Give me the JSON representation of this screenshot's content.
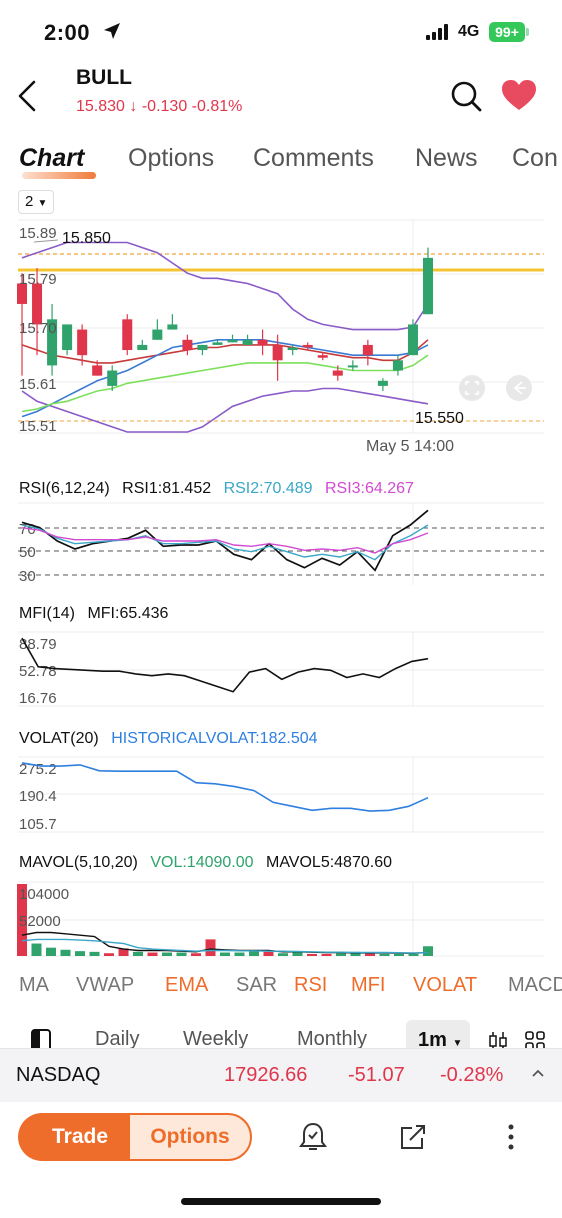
{
  "status_bar": {
    "time": "2:00",
    "network": "4G",
    "battery": "99+"
  },
  "header": {
    "ticker": "BULL",
    "price": "15.830",
    "change": "-0.130",
    "change_pct": "-0.81%",
    "price_color": "#e0364b",
    "icons": [
      "back-icon",
      "search-icon",
      "heart-icon"
    ]
  },
  "tabs": [
    "Chart",
    "Options",
    "Comments",
    "News",
    "Con"
  ],
  "chart": {
    "period_select": "2",
    "y_ticks": [
      "15.89",
      "15.79",
      "15.70",
      "15.61",
      "15.51"
    ],
    "high_label": "15.850",
    "low_label": "15.550",
    "cursor_time": "May 5 14:00",
    "up_color": "#2fa36b",
    "down_color": "#e0364b"
  },
  "chart_data": [
    {
      "type": "candlestick",
      "title": "",
      "ylim": [
        15.49,
        15.9
      ],
      "candles": [
        {
          "o": 15.78,
          "c": 15.74,
          "h": 15.8,
          "l": 15.6
        },
        {
          "o": 15.78,
          "c": 15.7,
          "h": 15.81,
          "l": 15.64
        },
        {
          "o": 15.62,
          "c": 15.71,
          "h": 15.74,
          "l": 15.6
        },
        {
          "o": 15.65,
          "c": 15.7,
          "h": 15.7,
          "l": 15.64
        },
        {
          "o": 15.69,
          "c": 15.64,
          "h": 15.7,
          "l": 15.62
        },
        {
          "o": 15.62,
          "c": 15.6,
          "h": 15.63,
          "l": 15.6
        },
        {
          "o": 15.58,
          "c": 15.61,
          "h": 15.62,
          "l": 15.57
        },
        {
          "o": 15.71,
          "c": 15.65,
          "h": 15.72,
          "l": 15.64
        },
        {
          "o": 15.65,
          "c": 15.66,
          "h": 15.67,
          "l": 15.65
        },
        {
          "o": 15.67,
          "c": 15.69,
          "h": 15.71,
          "l": 15.67
        },
        {
          "o": 15.69,
          "c": 15.7,
          "h": 15.72,
          "l": 15.69
        },
        {
          "o": 15.67,
          "c": 15.65,
          "h": 15.68,
          "l": 15.64
        },
        {
          "o": 15.65,
          "c": 15.66,
          "h": 15.66,
          "l": 15.64
        },
        {
          "o": 15.66,
          "c": 15.665,
          "h": 15.67,
          "l": 15.66
        },
        {
          "o": 15.665,
          "c": 15.67,
          "h": 15.68,
          "l": 15.665
        },
        {
          "o": 15.66,
          "c": 15.67,
          "h": 15.68,
          "l": 15.66
        },
        {
          "o": 15.67,
          "c": 15.66,
          "h": 15.69,
          "l": 15.64
        },
        {
          "o": 15.66,
          "c": 15.63,
          "h": 15.68,
          "l": 15.59
        },
        {
          "o": 15.65,
          "c": 15.655,
          "h": 15.66,
          "l": 15.64
        },
        {
          "o": 15.66,
          "c": 15.655,
          "h": 15.665,
          "l": 15.65
        },
        {
          "o": 15.64,
          "c": 15.635,
          "h": 15.645,
          "l": 15.63
        },
        {
          "o": 15.61,
          "c": 15.6,
          "h": 15.62,
          "l": 15.59
        },
        {
          "o": 15.62,
          "c": 15.62,
          "h": 15.63,
          "l": 15.61
        },
        {
          "o": 15.66,
          "c": 15.64,
          "h": 15.67,
          "l": 15.62
        },
        {
          "o": 15.58,
          "c": 15.59,
          "h": 15.595,
          "l": 15.57
        },
        {
          "o": 15.61,
          "c": 15.63,
          "h": 15.64,
          "l": 15.6
        },
        {
          "o": 15.64,
          "c": 15.7,
          "h": 15.71,
          "l": 15.64
        },
        {
          "o": 15.72,
          "c": 15.83,
          "h": 15.85,
          "l": 15.72
        }
      ],
      "lines": [
        {
          "name": "upper",
          "color": "#8a5ac8",
          "values": [
            15.83,
            15.84,
            15.85,
            15.86,
            15.86,
            15.86,
            15.86,
            15.86,
            15.85,
            15.84,
            15.82,
            15.8,
            15.79,
            15.79,
            15.785,
            15.78,
            15.77,
            15.76,
            15.73,
            15.71,
            15.7,
            15.695,
            15.69,
            15.69,
            15.69,
            15.69,
            15.695,
            15.74
          ]
        },
        {
          "name": "lower",
          "color": "#8a5ac8",
          "values": [
            15.57,
            15.55,
            15.54,
            15.53,
            15.52,
            15.51,
            15.5,
            15.49,
            15.49,
            15.49,
            15.49,
            15.49,
            15.5,
            15.52,
            15.54,
            15.55,
            15.56,
            15.565,
            15.57,
            15.57,
            15.575,
            15.575,
            15.57,
            15.565,
            15.56,
            15.555,
            15.55,
            15.545
          ]
        },
        {
          "name": "ma-red",
          "color": "#c83a3a",
          "values": [
            15.66,
            15.65,
            15.64,
            15.635,
            15.63,
            15.625,
            15.625,
            15.63,
            15.635,
            15.64,
            15.645,
            15.65,
            15.655,
            15.655,
            15.66,
            15.66,
            15.66,
            15.66,
            15.655,
            15.65,
            15.645,
            15.64,
            15.635,
            15.635,
            15.63,
            15.63,
            15.645,
            15.67
          ]
        },
        {
          "name": "ma-blue",
          "color": "#3a7bd5",
          "values": [
            15.52,
            15.53,
            15.545,
            15.56,
            15.575,
            15.59,
            15.6,
            15.61,
            15.625,
            15.64,
            15.655,
            15.66,
            15.665,
            15.67,
            15.67,
            15.67,
            15.67,
            15.665,
            15.66,
            15.655,
            15.65,
            15.645,
            15.64,
            15.64,
            15.64,
            15.64,
            15.645,
            15.66
          ]
        },
        {
          "name": "ma-green",
          "color": "#7ce05a",
          "values": [
            15.53,
            15.535,
            15.545,
            15.55,
            15.56,
            15.57,
            15.575,
            15.585,
            15.59,
            15.595,
            15.6,
            15.605,
            15.61,
            15.615,
            15.62,
            15.625,
            15.625,
            15.625,
            15.625,
            15.625,
            15.62,
            15.615,
            15.61,
            15.61,
            15.61,
            15.61,
            15.62,
            15.64
          ]
        }
      ]
    },
    {
      "type": "line",
      "title": "RSI(6,12,24)",
      "ylim": [
        25,
        85
      ],
      "levels": [
        70,
        50,
        30
      ],
      "series": [
        {
          "name": "RSI1",
          "color": "#111111",
          "values": [
            72,
            68,
            58,
            52,
            56,
            58,
            60,
            66,
            54,
            55,
            55,
            58,
            48,
            44,
            56,
            44,
            38,
            45,
            40,
            50,
            36,
            62,
            70,
            81
          ]
        },
        {
          "name": "RSI2",
          "color": "#3aa7c8",
          "values": [
            70,
            67,
            60,
            56,
            57,
            58,
            59,
            62,
            56,
            56,
            57,
            58,
            52,
            50,
            54,
            50,
            46,
            48,
            46,
            50,
            44,
            56,
            62,
            70
          ]
        },
        {
          "name": "RSI3",
          "color": "#d24ad2",
          "values": [
            68,
            66,
            61,
            59,
            59,
            59,
            59,
            61,
            58,
            58,
            58,
            59,
            55,
            54,
            56,
            54,
            51,
            52,
            51,
            53,
            49,
            56,
            59,
            64
          ]
        }
      ]
    },
    {
      "type": "line",
      "title": "MFI(14)",
      "ylim": [
        12,
        95
      ],
      "series": [
        {
          "name": "MFI",
          "color": "#111111",
          "values": [
            88,
            56,
            54,
            53,
            52,
            51,
            51,
            48,
            46,
            48,
            46,
            40,
            34,
            28,
            50,
            54,
            42,
            50,
            54,
            52,
            44,
            48,
            44,
            54,
            62,
            65
          ]
        }
      ]
    },
    {
      "type": "line",
      "title": "VOLAT(20)",
      "ylim": [
        95,
        285
      ],
      "series": [
        {
          "name": "HISTORICALVOLAT",
          "color": "#2f7fe0",
          "values": [
            270,
            262,
            262,
            265,
            250,
            249,
            249,
            249,
            249,
            220,
            217,
            210,
            200,
            170,
            160,
            150,
            155,
            155,
            148,
            150,
            160,
            182
          ]
        }
      ]
    },
    {
      "type": "bar",
      "title": "MAVOL(5,10,20)",
      "ylim": [
        0,
        104000
      ],
      "values": [
        104000,
        18000,
        12000,
        9000,
        7000,
        6000,
        4000,
        11000,
        6000,
        5000,
        5000,
        5000,
        4000,
        24000,
        5000,
        5000,
        7000,
        6000,
        4000,
        6000,
        3000,
        3000,
        4000,
        6000,
        4000,
        3000,
        3000,
        3000,
        14090
      ],
      "up": [
        false,
        true,
        true,
        true,
        true,
        true,
        false,
        false,
        true,
        false,
        true,
        true,
        false,
        false,
        true,
        true,
        true,
        false,
        true,
        true,
        false,
        false,
        true,
        true,
        false,
        true,
        true,
        true,
        true
      ],
      "lines": [
        {
          "name": "MAVOL5",
          "color": "#111111",
          "values": [
            30000,
            34000,
            34000,
            32000,
            30000,
            28000,
            14000,
            10000,
            8000,
            8000,
            8000,
            7000,
            6000,
            10000,
            9000,
            8000,
            8000,
            8000,
            6000,
            6000,
            5500,
            5000,
            5000,
            4500,
            4500,
            4500,
            4200,
            4000,
            4870
          ]
        },
        {
          "name": "MAVOL10",
          "color": "#3aa7c8",
          "values": [
            22000,
            24000,
            24000,
            24000,
            23000,
            22000,
            20000,
            18000,
            12000,
            10000,
            9000,
            8000,
            7000,
            8000,
            8000,
            7500,
            7500,
            7000,
            7000,
            6500,
            6000,
            5500,
            5500,
            5000,
            5000,
            5000,
            4800,
            4500,
            4800
          ]
        }
      ]
    }
  ],
  "indicators": {
    "rsi_label": "RSI(6,12,24)",
    "rsi1": "RSI1:81.452",
    "rsi2": "RSI2:70.489",
    "rsi3": "RSI3:64.267",
    "rsi_ticks": [
      "70",
      "50",
      "30"
    ],
    "mfi_label": "MFI(14)",
    "mfi_value": "MFI:65.436",
    "mfi_ticks": [
      "88.79",
      "52.78",
      "16.76"
    ],
    "volat_label": "VOLAT(20)",
    "volat_value": "HISTORICALVOLAT:182.504",
    "volat_ticks": [
      "275.2",
      "190.4",
      "105.7"
    ],
    "mavol_label": "MAVOL(5,10,20)",
    "vol_value": "VOL:14090.00",
    "mavol5_value": "MAVOL5:4870.60",
    "mavol_ticks": [
      "104000",
      "52000"
    ]
  },
  "indicator_bar": [
    "MA",
    "VWAP",
    "EMA",
    "SAR",
    "RSI",
    "MFI",
    "VOLAT",
    "MACD"
  ],
  "period_bar": {
    "items": [
      "Daily",
      "Weekly",
      "Monthly"
    ],
    "selected": "1m"
  },
  "index_bar": {
    "name": "NASDAQ",
    "value": "17926.66",
    "change": "-51.07",
    "change_pct": "-0.28%"
  },
  "bottom_bar": {
    "trade": "Trade",
    "options": "Options"
  }
}
